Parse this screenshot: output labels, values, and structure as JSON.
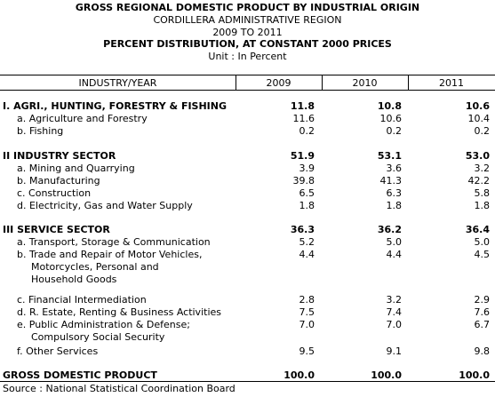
{
  "header": {
    "title": "GROSS REGIONAL DOMESTIC PRODUCT BY INDUSTRIAL ORIGIN",
    "region": "CORDILLERA ADMINISTRATIVE REGION",
    "period": "2009 TO 2011",
    "subtitle": "PERCENT DISTRIBUTION, AT CONSTANT 2000 PRICES",
    "unit": "Unit : In Percent"
  },
  "table": {
    "columns": [
      "INDUSTRY/YEAR",
      "2009",
      "2010",
      "2011"
    ],
    "rows": [
      {
        "label": "I. AGRI., HUNTING, FORESTRY & FISHING",
        "v2009": "11.8",
        "v2010": "10.8",
        "v2011": "10.6"
      },
      {
        "label": "a. Agriculture and Forestry",
        "v2009": "11.6",
        "v2010": "10.6",
        "v2011": "10.4"
      },
      {
        "label": "b. Fishing",
        "v2009": "0.2",
        "v2010": "0.2",
        "v2011": "0.2"
      },
      {
        "label": "II  INDUSTRY SECTOR",
        "v2009": "51.9",
        "v2010": "53.1",
        "v2011": "53.0"
      },
      {
        "label": "a. Mining and Quarrying",
        "v2009": "3.9",
        "v2010": "3.6",
        "v2011": "3.2"
      },
      {
        "label": "b. Manufacturing",
        "v2009": "39.8",
        "v2010": "41.3",
        "v2011": "42.2"
      },
      {
        "label": "c. Construction",
        "v2009": "6.5",
        "v2010": "6.3",
        "v2011": "5.8"
      },
      {
        "label": "d. Electricity, Gas and Water Supply",
        "v2009": "1.8",
        "v2010": "1.8",
        "v2011": "1.8"
      },
      {
        "label": "III  SERVICE SECTOR",
        "v2009": "36.3",
        "v2010": "36.2",
        "v2011": "36.4"
      },
      {
        "label": "a. Transport, Storage & Communication",
        "v2009": "5.2",
        "v2010": "5.0",
        "v2011": "5.0"
      },
      {
        "label": "b. Trade and Repair of Motor Vehicles,",
        "label2": "Motorcycles, Personal and",
        "label3": "Household Goods",
        "v2009": "4.4",
        "v2010": "4.4",
        "v2011": "4.5"
      },
      {
        "label": "c. Financial Intermediation",
        "v2009": "2.8",
        "v2010": "3.2",
        "v2011": "2.9"
      },
      {
        "label": "d. R. Estate, Renting & Business Activities",
        "v2009": "7.5",
        "v2010": "7.4",
        "v2011": "7.6"
      },
      {
        "label": "e. Public Administration & Defense;",
        "label2": "Compulsory Social Security",
        "v2009": "7.0",
        "v2010": "7.0",
        "v2011": "6.7"
      },
      {
        "label": "f. Other Services",
        "v2009": "9.5",
        "v2010": "9.1",
        "v2011": "9.8"
      },
      {
        "label": "GROSS DOMESTIC PRODUCT",
        "v2009": "100.0",
        "v2010": "100.0",
        "v2011": "100.0"
      }
    ]
  },
  "source": "Source : National Statistical Coordination Board"
}
